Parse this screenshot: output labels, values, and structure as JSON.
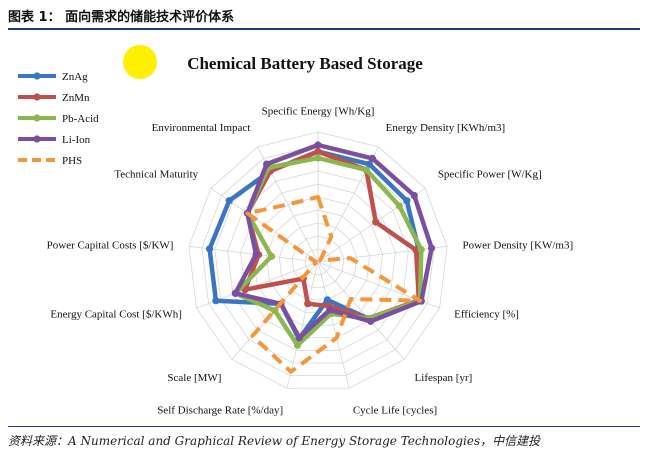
{
  "header": {
    "figure_title": "图表 1：   面向需求的储能技术评价体系"
  },
  "footer": {
    "source": "资料来源：A Numerical and Graphical Review of Energy Storage Technologies，中信建投"
  },
  "chart_data": {
    "type": "radar",
    "title": "Chemical Battery Based Storage",
    "axes": [
      "Specific Energy [Wh/Kg]",
      "Energy Density [KWh/m3]",
      "Specific Power [W/Kg]",
      "Power Density [KW/m3]",
      "Efficiency [%]",
      "Lifespan [yr]",
      "Cycle Life [cycles]",
      "Self Discharge Rate [%/day]",
      "Scale [MW]",
      "Energy Capital Cost [$/KWh]",
      "Power Capital Costs [$/KW]",
      "Technical Maturity",
      "Environmental Impact"
    ],
    "rmax": 10,
    "rings": 10,
    "legend_position": "top-left",
    "series": [
      {
        "name": "ZnAg",
        "color": "#3a75c4",
        "dash": false,
        "values": [
          8.5,
          8.5,
          8.3,
          7.8,
          8.4,
          5.8,
          3.0,
          6.1,
          4.3,
          8.4,
          8.4,
          8.3,
          7.9
        ]
      },
      {
        "name": "ZnMn",
        "color": "#c0504d",
        "dash": false,
        "values": [
          8.5,
          8.0,
          5.4,
          7.6,
          8.3,
          5.8,
          3.5,
          3.3,
          1.7,
          6.0,
          4.6,
          6.6,
          7.9
        ]
      },
      {
        "name": "Pb-Acid",
        "color": "#8cb650",
        "dash": false,
        "values": [
          8.0,
          8.0,
          7.6,
          8.0,
          8.4,
          5.8,
          4.1,
          6.6,
          5.0,
          6.8,
          3.6,
          6.6,
          8.2
        ]
      },
      {
        "name": "Li-Ion",
        "color": "#7b4fa0",
        "dash": false,
        "values": [
          9.0,
          9.0,
          9.0,
          8.8,
          8.5,
          6.1,
          3.8,
          6.0,
          4.3,
          6.8,
          4.8,
          6.6,
          8.5
        ]
      },
      {
        "name": "PHS",
        "color": "#f3963c",
        "dash": true,
        "values": [
          5.0,
          2.2,
          0.2,
          2.5,
          8.4,
          3.8,
          6.0,
          8.7,
          7.6,
          0.2,
          0.2,
          6.6,
          5.0
        ]
      }
    ]
  }
}
